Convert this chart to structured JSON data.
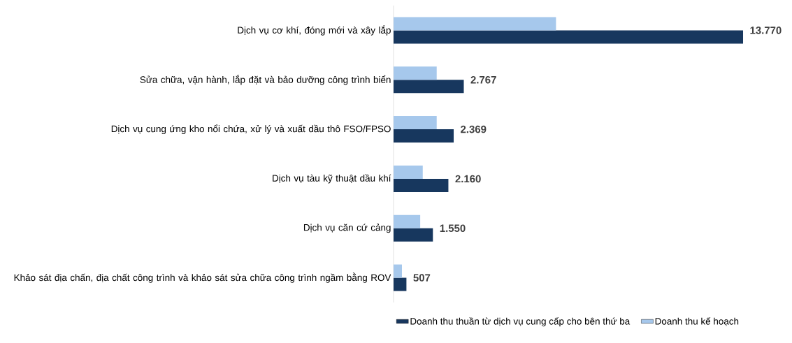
{
  "chart_data": {
    "type": "bar",
    "orientation": "horizontal",
    "legend": "bottom",
    "categories": [
      "Dịch vụ cơ khí, đóng mới và xây lắp",
      "Sửa chữa, vận hành, lắp đặt và bảo dưỡng công trình biển",
      "Dịch vụ cung ứng kho nổi chứa, xử lý và xuất dầu thô FSO/FPSO",
      "Dịch vụ tàu kỹ thuật dầu khí",
      "Dịch vụ căn cứ cảng",
      "Khảo sát địa chấn, địa chất công trình và khảo sát sửa chữa công trình ngầm bằng ROV"
    ],
    "series": [
      {
        "name": "Doanh thu thuần từ dịch vụ cung cấp cho bên thứ ba",
        "color": "#17375e",
        "values": [
          13770,
          2767,
          2369,
          2160,
          1550,
          507
        ],
        "value_labels": [
          "13.770",
          "2.767",
          "2.369",
          "2.160",
          "1.550",
          "507"
        ]
      },
      {
        "name": "Doanh thu kế hoạch",
        "color": "#a6c8ec",
        "values": [
          6400,
          1700,
          1700,
          1150,
          1050,
          330
        ]
      }
    ]
  }
}
